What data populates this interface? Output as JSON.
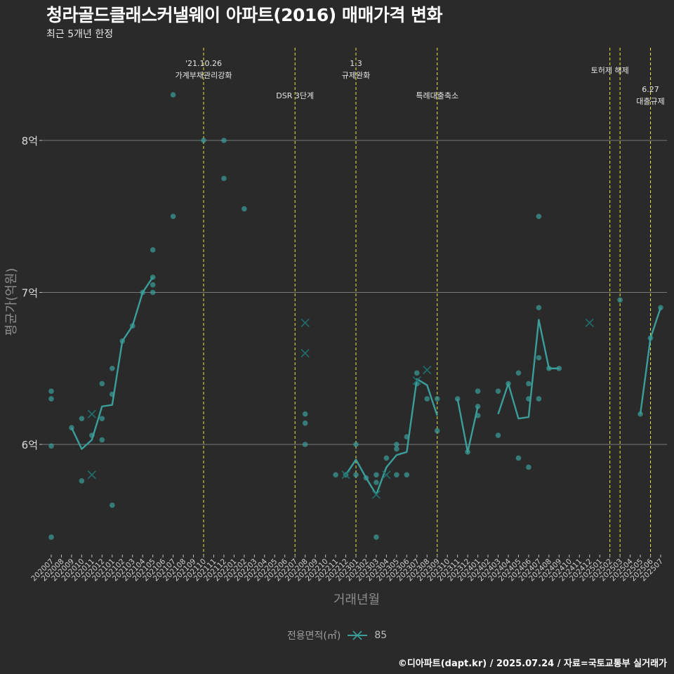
{
  "header": {
    "title": "청라골드클래스커낼웨이 아파트(2016) 매매가격 변화",
    "subtitle": "최근 5개년 한정"
  },
  "caption": "©디아파트(dapt.kr) / 2025.07.24 / 자료=국토교통부 실거래가",
  "legend": {
    "title": "전용면적(㎡)",
    "label": "85"
  },
  "colors": {
    "series": "#3a9e9a",
    "event_line": "#e8e84a",
    "grid": "#7a7a7a"
  },
  "chart_data": {
    "type": "line",
    "title": "청라골드클래스커낼웨이 아파트(2016) 매매가격 변화",
    "xlabel": "거래년월",
    "ylabel": "평균가(억원)",
    "categories": [
      "202007",
      "202008",
      "202009",
      "202010",
      "202011",
      "202012",
      "202101",
      "202102",
      "202103",
      "202104",
      "202105",
      "202106",
      "202107",
      "202108",
      "202109",
      "202110",
      "202111",
      "202112",
      "202201",
      "202202",
      "202203",
      "202204",
      "202205",
      "202206",
      "202207",
      "202208",
      "202209",
      "202210",
      "202211",
      "202212",
      "202301",
      "202302",
      "202303",
      "202304",
      "202305",
      "202306",
      "202307",
      "202308",
      "202309",
      "202310",
      "202311",
      "202312",
      "202401",
      "202402",
      "202403",
      "202404",
      "202405",
      "202406",
      "202407",
      "202408",
      "202409",
      "202410",
      "202411",
      "202412",
      "202501",
      "202502",
      "202503",
      "202504",
      "202505",
      "202506",
      "202507"
    ],
    "y_ticks": [
      {
        "value": 6,
        "label": "6억"
      },
      {
        "value": 7,
        "label": "7억"
      },
      {
        "value": 8,
        "label": "8억"
      }
    ],
    "ylim": [
      5.25,
      8.6
    ],
    "series": [
      {
        "name": "85",
        "line": [
          {
            "x": "202009",
            "y": 6.11
          },
          {
            "x": "202010",
            "y": 5.97
          },
          {
            "x": "202011",
            "y": 6.03
          },
          {
            "x": "202012",
            "y": 6.25
          },
          {
            "x": "202101",
            "y": 6.26
          },
          {
            "x": "202102",
            "y": 6.68
          },
          {
            "x": "202103",
            "y": 6.78
          },
          {
            "x": "202104",
            "y": 7.0
          },
          {
            "x": "202105",
            "y": 7.1
          },
          null,
          {
            "x": "202212",
            "y": 5.8
          },
          {
            "x": "202301",
            "y": 5.9
          },
          {
            "x": "202302",
            "y": 5.78
          },
          {
            "x": "202303",
            "y": 5.67
          },
          {
            "x": "202304",
            "y": 5.85
          },
          {
            "x": "202305",
            "y": 5.93
          },
          {
            "x": "202306",
            "y": 5.95
          },
          {
            "x": "202307",
            "y": 6.43
          },
          {
            "x": "202308",
            "y": 6.39
          },
          {
            "x": "202309",
            "y": 6.19
          },
          null,
          {
            "x": "202311",
            "y": 6.3
          },
          {
            "x": "202312",
            "y": 5.95
          },
          {
            "x": "202401",
            "y": 6.25
          },
          null,
          {
            "x": "202403",
            "y": 6.2
          },
          {
            "x": "202404",
            "y": 6.4
          },
          {
            "x": "202405",
            "y": 6.17
          },
          {
            "x": "202406",
            "y": 6.18
          },
          {
            "x": "202407",
            "y": 6.82
          },
          {
            "x": "202408",
            "y": 6.5
          },
          {
            "x": "202409",
            "y": 6.5
          },
          null,
          {
            "x": "202505",
            "y": 6.2
          },
          {
            "x": "202506",
            "y": 6.7
          },
          {
            "x": "202507",
            "y": 6.9
          }
        ],
        "points": [
          {
            "x": "202007",
            "y": 6.35
          },
          {
            "x": "202007",
            "y": 6.3
          },
          {
            "x": "202007",
            "y": 5.99
          },
          {
            "x": "202007",
            "y": 5.39
          },
          {
            "x": "202009",
            "y": 6.11
          },
          {
            "x": "202010",
            "y": 6.17
          },
          {
            "x": "202010",
            "y": 5.76
          },
          {
            "x": "202011",
            "y": 6.06
          },
          {
            "x": "202012",
            "y": 6.4
          },
          {
            "x": "202012",
            "y": 6.17
          },
          {
            "x": "202012",
            "y": 6.03
          },
          {
            "x": "202101",
            "y": 6.5
          },
          {
            "x": "202101",
            "y": 6.33
          },
          {
            "x": "202101",
            "y": 5.6
          },
          {
            "x": "202102",
            "y": 6.68
          },
          {
            "x": "202103",
            "y": 6.78
          },
          {
            "x": "202104",
            "y": 7.0
          },
          {
            "x": "202105",
            "y": 7.28
          },
          {
            "x": "202105",
            "y": 7.1
          },
          {
            "x": "202105",
            "y": 7.05
          },
          {
            "x": "202105",
            "y": 7.0
          },
          {
            "x": "202107",
            "y": 8.3
          },
          {
            "x": "202107",
            "y": 7.5
          },
          {
            "x": "202110",
            "y": 8.0
          },
          {
            "x": "202112",
            "y": 8.0
          },
          {
            "x": "202112",
            "y": 7.75
          },
          {
            "x": "202202",
            "y": 7.55
          },
          {
            "x": "202208",
            "y": 6.2
          },
          {
            "x": "202208",
            "y": 6.14
          },
          {
            "x": "202208",
            "y": 6.0
          },
          {
            "x": "202211",
            "y": 5.8
          },
          {
            "x": "202212",
            "y": 5.8
          },
          {
            "x": "202301",
            "y": 6.0
          },
          {
            "x": "202301",
            "y": 5.8
          },
          {
            "x": "202302",
            "y": 5.78
          },
          {
            "x": "202303",
            "y": 5.8
          },
          {
            "x": "202303",
            "y": 5.75
          },
          {
            "x": "202303",
            "y": 5.39
          },
          {
            "x": "202304",
            "y": 5.91
          },
          {
            "x": "202305",
            "y": 6.0
          },
          {
            "x": "202305",
            "y": 5.97
          },
          {
            "x": "202305",
            "y": 5.8
          },
          {
            "x": "202306",
            "y": 6.05
          },
          {
            "x": "202306",
            "y": 5.8
          },
          {
            "x": "202307",
            "y": 6.47
          },
          {
            "x": "202307",
            "y": 6.4
          },
          {
            "x": "202308",
            "y": 6.3
          },
          {
            "x": "202309",
            "y": 6.3
          },
          {
            "x": "202309",
            "y": 6.09
          },
          {
            "x": "202311",
            "y": 6.3
          },
          {
            "x": "202312",
            "y": 5.95
          },
          {
            "x": "202401",
            "y": 6.35
          },
          {
            "x": "202401",
            "y": 6.25
          },
          {
            "x": "202401",
            "y": 6.19
          },
          {
            "x": "202403",
            "y": 6.35
          },
          {
            "x": "202403",
            "y": 6.06
          },
          {
            "x": "202404",
            "y": 6.4
          },
          {
            "x": "202405",
            "y": 6.47
          },
          {
            "x": "202405",
            "y": 5.91
          },
          {
            "x": "202406",
            "y": 6.4
          },
          {
            "x": "202406",
            "y": 6.3
          },
          {
            "x": "202406",
            "y": 5.85
          },
          {
            "x": "202407",
            "y": 7.5
          },
          {
            "x": "202407",
            "y": 6.9
          },
          {
            "x": "202407",
            "y": 6.57
          },
          {
            "x": "202407",
            "y": 6.3
          },
          {
            "x": "202408",
            "y": 6.5
          },
          {
            "x": "202409",
            "y": 6.5
          },
          {
            "x": "202503",
            "y": 6.95
          },
          {
            "x": "202505",
            "y": 6.2
          },
          {
            "x": "202506",
            "y": 6.7
          },
          {
            "x": "202507",
            "y": 6.9
          }
        ],
        "crosses": [
          {
            "x": "202011",
            "y": 6.2
          },
          {
            "x": "202011",
            "y": 5.8
          },
          {
            "x": "202208",
            "y": 6.8
          },
          {
            "x": "202208",
            "y": 6.6
          },
          {
            "x": "202212",
            "y": 5.8
          },
          {
            "x": "202303",
            "y": 5.67
          },
          {
            "x": "202304",
            "y": 5.8
          },
          {
            "x": "202307",
            "y": 6.42
          },
          {
            "x": "202308",
            "y": 6.49
          },
          {
            "x": "202412",
            "y": 6.8
          }
        ]
      }
    ],
    "annotations": [
      {
        "x": "202110",
        "lines": [
          "'21.10.26",
          "가계부채관리강화"
        ],
        "level": "high"
      },
      {
        "x": "202207",
        "lines": [
          "DSR 3단계"
        ],
        "level": "low"
      },
      {
        "x": "202301",
        "lines": [
          "1.3",
          "규제완화"
        ],
        "level": "high"
      },
      {
        "x": "202309",
        "lines": [
          "특례대출축소"
        ],
        "level": "low"
      },
      {
        "x": "202502",
        "lines": [
          "토허제 해제"
        ],
        "level": "mid"
      },
      {
        "x": "202503",
        "lines": [],
        "level": "none"
      },
      {
        "x": "202506",
        "lines": [
          "6.27",
          "대출규제"
        ],
        "level": "lower"
      }
    ]
  }
}
